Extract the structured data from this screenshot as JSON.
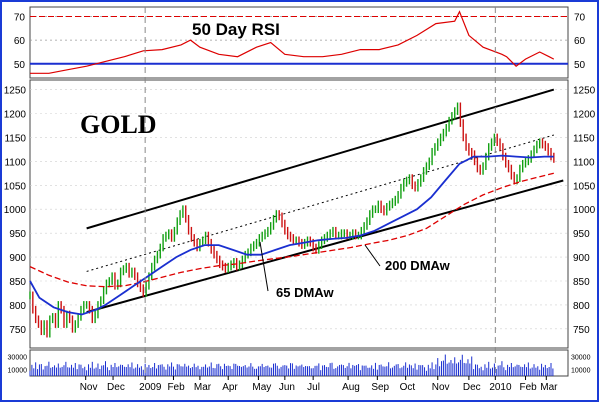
{
  "chart_data": [
    {
      "type": "line",
      "title": "50 Day RSI",
      "ylim": [
        44,
        74
      ],
      "y_ticks": [
        50,
        60,
        70
      ],
      "y_tick_labels": [
        "50",
        "60",
        "70"
      ],
      "reference_lines": [
        50,
        70
      ],
      "grid": true,
      "series": [
        {
          "color": "#dd0000",
          "points": [
            [
              0,
              46
            ],
            [
              20,
              46
            ],
            [
              40,
              47.5
            ],
            [
              60,
              49
            ],
            [
              80,
              51
            ],
            [
              100,
              53
            ],
            [
              120,
              55.5
            ],
            [
              140,
              56
            ],
            [
              160,
              58
            ],
            [
              170,
              60
            ],
            [
              180,
              57
            ],
            [
              200,
              54
            ],
            [
              220,
              53
            ],
            [
              240,
              57
            ],
            [
              255,
              59
            ],
            [
              270,
              54
            ],
            [
              290,
              53
            ],
            [
              310,
              53
            ],
            [
              330,
              54
            ],
            [
              350,
              56
            ],
            [
              370,
              56
            ],
            [
              390,
              58
            ],
            [
              410,
              62
            ],
            [
              430,
              67
            ],
            [
              450,
              68
            ],
            [
              455,
              72
            ],
            [
              465,
              62
            ],
            [
              480,
              57
            ],
            [
              500,
              54
            ],
            [
              505,
              53
            ],
            [
              515,
              49
            ],
            [
              525,
              52
            ],
            [
              540,
              55
            ],
            [
              550,
              53
            ],
            [
              555,
              52
            ]
          ]
        }
      ]
    },
    {
      "type": "line",
      "title": "GOLD",
      "ylim": [
        710,
        1270
      ],
      "y_ticks": [
        750,
        800,
        850,
        900,
        950,
        1000,
        1050,
        1100,
        1150,
        1200,
        1250
      ],
      "y_tick_labels": [
        "750",
        "800",
        "850",
        "900",
        "950",
        "1000",
        "1050",
        "1100",
        "1150",
        "1200",
        "1250"
      ],
      "x_tick_labels": [
        "Nov",
        "Dec",
        "2009",
        "Feb",
        "Mar",
        "Apr",
        "May",
        "Jun",
        "Jul",
        "Aug",
        "Sep",
        "Oct",
        "Nov",
        "Dec",
        "2010",
        "Feb",
        "Mar"
      ],
      "x_tick_positions": [
        59,
        88,
        122,
        152,
        180,
        210,
        242,
        270,
        300,
        337,
        368,
        398,
        432,
        465,
        493,
        525,
        547
      ],
      "annotations": [
        "65 DMAw",
        "200 DMAw"
      ],
      "grid": true,
      "price": [
        [
          0,
          820
        ],
        [
          3,
          790
        ],
        [
          6,
          770
        ],
        [
          9,
          760
        ],
        [
          12,
          745
        ],
        [
          15,
          760
        ],
        [
          18,
          740
        ],
        [
          21,
          770
        ],
        [
          24,
          775
        ],
        [
          27,
          760
        ],
        [
          30,
          800
        ],
        [
          33,
          790
        ],
        [
          36,
          760
        ],
        [
          39,
          780
        ],
        [
          42,
          770
        ],
        [
          45,
          750
        ],
        [
          48,
          760
        ],
        [
          51,
          775
        ],
        [
          54,
          790
        ],
        [
          57,
          800
        ],
        [
          60,
          800
        ],
        [
          63,
          790
        ],
        [
          66,
          770
        ],
        [
          69,
          780
        ],
        [
          72,
          800
        ],
        [
          75,
          810
        ],
        [
          78,
          830
        ],
        [
          81,
          845
        ],
        [
          84,
          850
        ],
        [
          87,
          860
        ],
        [
          90,
          840
        ],
        [
          93,
          845
        ],
        [
          96,
          870
        ],
        [
          99,
          875
        ],
        [
          102,
          880
        ],
        [
          105,
          865
        ],
        [
          108,
          870
        ],
        [
          111,
          860
        ],
        [
          114,
          845
        ],
        [
          117,
          835
        ],
        [
          120,
          825
        ],
        [
          123,
          840
        ],
        [
          126,
          860
        ],
        [
          129,
          880
        ],
        [
          132,
          895
        ],
        [
          135,
          905
        ],
        [
          138,
          920
        ],
        [
          141,
          940
        ],
        [
          144,
          945
        ],
        [
          147,
          950
        ],
        [
          150,
          940
        ],
        [
          153,
          955
        ],
        [
          156,
          975
        ],
        [
          159,
          990
        ],
        [
          162,
          1000
        ],
        [
          165,
          980
        ],
        [
          168,
          955
        ],
        [
          171,
          940
        ],
        [
          174,
          930
        ],
        [
          177,
          920
        ],
        [
          180,
          930
        ],
        [
          183,
          935
        ],
        [
          186,
          945
        ],
        [
          189,
          930
        ],
        [
          192,
          915
        ],
        [
          195,
          905
        ],
        [
          198,
          895
        ],
        [
          201,
          885
        ],
        [
          204,
          880
        ],
        [
          207,
          875
        ],
        [
          210,
          880
        ],
        [
          213,
          885
        ],
        [
          216,
          890
        ],
        [
          219,
          880
        ],
        [
          222,
          885
        ],
        [
          225,
          895
        ],
        [
          228,
          905
        ],
        [
          231,
          910
        ],
        [
          234,
          920
        ],
        [
          237,
          925
        ],
        [
          240,
          930
        ],
        [
          243,
          940
        ],
        [
          246,
          945
        ],
        [
          249,
          950
        ],
        [
          252,
          955
        ],
        [
          255,
          965
        ],
        [
          258,
          980
        ],
        [
          261,
          990
        ],
        [
          264,
          985
        ],
        [
          267,
          970
        ],
        [
          270,
          955
        ],
        [
          273,
          945
        ],
        [
          276,
          940
        ],
        [
          279,
          935
        ],
        [
          282,
          935
        ],
        [
          285,
          930
        ],
        [
          288,
          925
        ],
        [
          291,
          930
        ],
        [
          294,
          935
        ],
        [
          297,
          930
        ],
        [
          300,
          920
        ],
        [
          303,
          915
        ],
        [
          306,
          925
        ],
        [
          309,
          935
        ],
        [
          312,
          940
        ],
        [
          315,
          945
        ],
        [
          318,
          950
        ],
        [
          321,
          955
        ],
        [
          324,
          945
        ],
        [
          327,
          945
        ],
        [
          330,
          950
        ],
        [
          333,
          950
        ],
        [
          336,
          945
        ],
        [
          339,
          945
        ],
        [
          342,
          950
        ],
        [
          345,
          945
        ],
        [
          348,
          945
        ],
        [
          351,
          955
        ],
        [
          354,
          965
        ],
        [
          357,
          975
        ],
        [
          360,
          990
        ],
        [
          363,
          1000
        ],
        [
          366,
          1000
        ],
        [
          369,
          1010
        ],
        [
          372,
          1000
        ],
        [
          375,
          995
        ],
        [
          378,
          1005
        ],
        [
          381,
          1010
        ],
        [
          384,
          1015
        ],
        [
          387,
          1020
        ],
        [
          390,
          1030
        ],
        [
          393,
          1045
        ],
        [
          396,
          1055
        ],
        [
          399,
          1060
        ],
        [
          402,
          1065
        ],
        [
          405,
          1050
        ],
        [
          408,
          1045
        ],
        [
          411,
          1055
        ],
        [
          414,
          1065
        ],
        [
          417,
          1080
        ],
        [
          420,
          1090
        ],
        [
          423,
          1100
        ],
        [
          426,
          1120
        ],
        [
          429,
          1130
        ],
        [
          432,
          1140
        ],
        [
          435,
          1150
        ],
        [
          438,
          1160
        ],
        [
          441,
          1170
        ],
        [
          444,
          1185
        ],
        [
          447,
          1195
        ],
        [
          450,
          1205
        ],
        [
          453,
          1215
        ],
        [
          456,
          1180
        ],
        [
          459,
          1150
        ],
        [
          462,
          1130
        ],
        [
          465,
          1120
        ],
        [
          468,
          1115
        ],
        [
          471,
          1100
        ],
        [
          474,
          1085
        ],
        [
          477,
          1080
        ],
        [
          480,
          1090
        ],
        [
          483,
          1110
        ],
        [
          486,
          1130
        ],
        [
          489,
          1140
        ],
        [
          492,
          1150
        ],
        [
          495,
          1140
        ],
        [
          498,
          1130
        ],
        [
          501,
          1110
        ],
        [
          504,
          1095
        ],
        [
          507,
          1085
        ],
        [
          510,
          1070
        ],
        [
          513,
          1060
        ],
        [
          516,
          1065
        ],
        [
          519,
          1085
        ],
        [
          522,
          1095
        ],
        [
          525,
          1100
        ],
        [
          528,
          1105
        ],
        [
          531,
          1115
        ],
        [
          534,
          1125
        ],
        [
          537,
          1135
        ],
        [
          540,
          1140
        ],
        [
          543,
          1135
        ],
        [
          546,
          1130
        ],
        [
          549,
          1120
        ],
        [
          552,
          1110
        ],
        [
          555,
          1105
        ]
      ],
      "ma65": [
        [
          0,
          850
        ],
        [
          10,
          815
        ],
        [
          25,
          795
        ],
        [
          40,
          785
        ],
        [
          55,
          780
        ],
        [
          70,
          790
        ],
        [
          80,
          800
        ],
        [
          95,
          820
        ],
        [
          110,
          840
        ],
        [
          125,
          860
        ],
        [
          140,
          880
        ],
        [
          155,
          900
        ],
        [
          170,
          915
        ],
        [
          185,
          925
        ],
        [
          200,
          925
        ],
        [
          215,
          915
        ],
        [
          230,
          905
        ],
        [
          245,
          905
        ],
        [
          260,
          915
        ],
        [
          275,
          925
        ],
        [
          290,
          930
        ],
        [
          305,
          935
        ],
        [
          320,
          938
        ],
        [
          335,
          940
        ],
        [
          350,
          945
        ],
        [
          365,
          955
        ],
        [
          380,
          970
        ],
        [
          395,
          985
        ],
        [
          410,
          1000
        ],
        [
          425,
          1025
        ],
        [
          440,
          1060
        ],
        [
          455,
          1095
        ],
        [
          470,
          1110
        ],
        [
          485,
          1110
        ],
        [
          500,
          1112
        ],
        [
          515,
          1110
        ],
        [
          530,
          1108
        ],
        [
          545,
          1110
        ],
        [
          555,
          1110
        ]
      ],
      "ma200": [
        [
          0,
          880
        ],
        [
          20,
          862
        ],
        [
          40,
          848
        ],
        [
          60,
          840
        ],
        [
          80,
          838
        ],
        [
          100,
          840
        ],
        [
          120,
          848
        ],
        [
          140,
          858
        ],
        [
          160,
          868
        ],
        [
          180,
          876
        ],
        [
          200,
          882
        ],
        [
          220,
          886
        ],
        [
          240,
          892
        ],
        [
          260,
          897
        ],
        [
          280,
          902
        ],
        [
          300,
          908
        ],
        [
          320,
          914
        ],
        [
          340,
          920
        ],
        [
          360,
          928
        ],
        [
          380,
          935
        ],
        [
          400,
          945
        ],
        [
          420,
          960
        ],
        [
          440,
          985
        ],
        [
          460,
          1010
        ],
        [
          480,
          1030
        ],
        [
          500,
          1045
        ],
        [
          520,
          1058
        ],
        [
          540,
          1068
        ],
        [
          555,
          1075
        ]
      ],
      "channel": [
        {
          "style": "solid",
          "points": [
            [
              60,
              960
            ],
            [
              555,
              1250
            ]
          ]
        },
        {
          "style": "solid",
          "points": [
            [
              60,
              785
            ],
            [
              565,
              1060
            ]
          ]
        },
        {
          "style": "dotted",
          "points": [
            [
              60,
              870
            ],
            [
              555,
              1155
            ]
          ]
        }
      ]
    },
    {
      "type": "bar",
      "title": "",
      "ylim": [
        0,
        40000
      ],
      "y_ticks": [
        10000,
        30000
      ],
      "y_tick_labels": [
        "10000",
        "30000"
      ],
      "volume_seed": [
        8,
        14,
        11,
        17,
        9,
        13,
        16,
        10,
        12,
        15,
        18,
        11,
        9,
        14,
        13,
        16,
        12,
        10,
        15,
        17,
        11,
        13,
        14,
        12,
        16,
        9,
        13,
        15,
        12,
        11
      ]
    }
  ]
}
